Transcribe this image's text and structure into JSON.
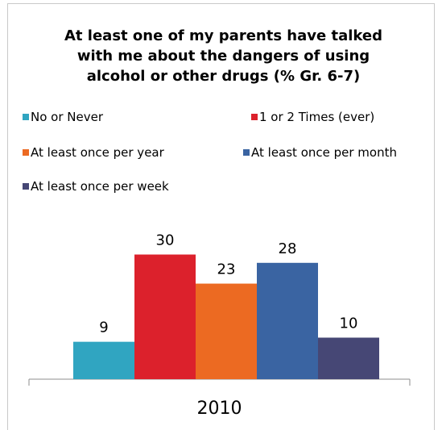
{
  "chart_data": {
    "type": "bar",
    "title_lines": [
      "At least one of my parents have talked",
      "with me about the dangers of using",
      "alcohol or other drugs (% Gr.  6-7)"
    ],
    "categories": [
      "2010"
    ],
    "series": [
      {
        "name": "No or Never",
        "values": [
          9
        ],
        "color": "#30a5c1"
      },
      {
        "name": "1 or 2 Times (ever)",
        "values": [
          30
        ],
        "color": "#dc212c"
      },
      {
        "name": "At least once per year",
        "values": [
          23
        ],
        "color": "#ec6a22"
      },
      {
        "name": "At least once per month",
        "values": [
          28
        ],
        "color": "#3a64a2"
      },
      {
        "name": "At least once per week",
        "values": [
          10
        ],
        "color": "#464775"
      }
    ],
    "ylim": [
      0,
      35
    ],
    "grid": false,
    "legend_position": "top",
    "data_labels": true
  }
}
